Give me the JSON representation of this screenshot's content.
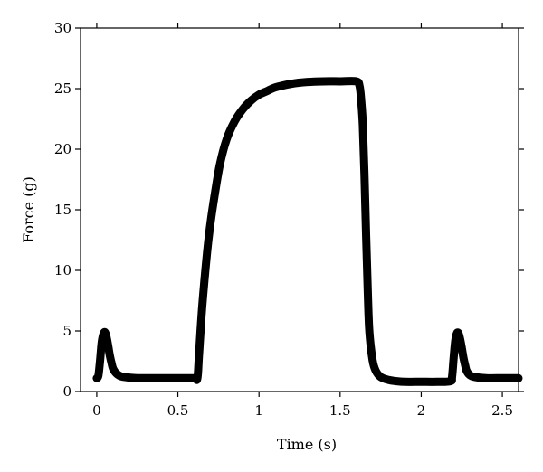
{
  "chart_data": {
    "type": "line",
    "xlabel": "Time (s)",
    "ylabel": "Force (g)",
    "xlim": [
      -0.1,
      2.6
    ],
    "ylim": [
      0,
      30
    ],
    "xticks": [
      0,
      0.5,
      1,
      1.5,
      2,
      2.5
    ],
    "xtick_labels": [
      "0",
      "0.5",
      "1",
      "1.5",
      "2",
      "2.5"
    ],
    "yticks": [
      0,
      5,
      10,
      15,
      20,
      25,
      30
    ],
    "ytick_labels": [
      "0",
      "5",
      "10",
      "15",
      "20",
      "25",
      "30"
    ],
    "grid": false,
    "series": [
      {
        "color": "#000000",
        "x": [
          0.0,
          0.01,
          0.02,
          0.03,
          0.04,
          0.05,
          0.06,
          0.07,
          0.08,
          0.09,
          0.1,
          0.12,
          0.15,
          0.2,
          0.25,
          0.3,
          0.4,
          0.5,
          0.6,
          0.62,
          0.63,
          0.65,
          0.68,
          0.7,
          0.73,
          0.76,
          0.8,
          0.85,
          0.9,
          0.95,
          1.0,
          1.05,
          1.1,
          1.2,
          1.3,
          1.4,
          1.5,
          1.6,
          1.62,
          1.63,
          1.64,
          1.65,
          1.66,
          1.67,
          1.68,
          1.7,
          1.72,
          1.75,
          1.8,
          1.85,
          1.9,
          2.0,
          2.1,
          2.18,
          2.19,
          2.2,
          2.21,
          2.22,
          2.23,
          2.24,
          2.25,
          2.26,
          2.27,
          2.28,
          2.3,
          2.33,
          2.4,
          2.5,
          2.6
        ],
        "y": [
          1.1,
          1.3,
          2.5,
          4.0,
          4.7,
          4.9,
          4.5,
          3.8,
          3.0,
          2.4,
          1.9,
          1.5,
          1.25,
          1.15,
          1.1,
          1.1,
          1.1,
          1.1,
          1.1,
          1.1,
          3.0,
          7.0,
          11.5,
          13.8,
          16.5,
          18.8,
          20.8,
          22.3,
          23.3,
          24.0,
          24.5,
          24.8,
          25.1,
          25.4,
          25.55,
          25.6,
          25.6,
          25.6,
          25.2,
          24.0,
          22.0,
          18.0,
          13.0,
          8.5,
          5.0,
          2.6,
          1.7,
          1.2,
          0.95,
          0.85,
          0.8,
          0.8,
          0.8,
          0.85,
          1.2,
          2.8,
          4.2,
          4.8,
          4.8,
          4.3,
          3.6,
          2.8,
          2.2,
          1.7,
          1.35,
          1.2,
          1.1,
          1.1,
          1.1
        ]
      }
    ]
  }
}
